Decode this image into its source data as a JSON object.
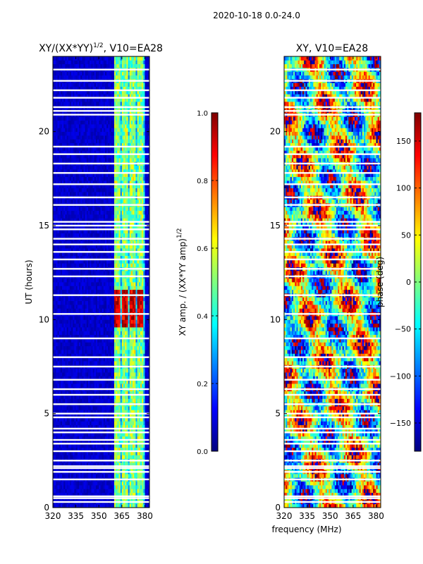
{
  "suptitle": "2020-10-18 0.0-24.0",
  "shared_xlabel": "frequency (MHz)",
  "colors": {
    "jet": [
      "#00007f",
      "#0000ff",
      "#007fff",
      "#00ffff",
      "#7fff7f",
      "#ffff00",
      "#ff7f00",
      "#ff0000",
      "#7f0000"
    ],
    "background": "#ffffff",
    "axis": "#000000"
  },
  "chart_data": [
    {
      "type": "heatmap",
      "panel": "left",
      "title_main": "XY/(XX*YY)",
      "title_sup": "1/2",
      "title_tail": ", V10=EA28",
      "xlabel": "",
      "ylabel": "UT (hours)",
      "xlim": [
        320,
        383
      ],
      "ylim": [
        0,
        24
      ],
      "xticks": [
        320,
        335,
        350,
        365,
        380
      ],
      "yticks": [
        0,
        5,
        10,
        15,
        20
      ],
      "colorbar": {
        "label_main": "XY amp. / (XX*YY amp)",
        "label_sup": "1/2",
        "range": [
          0.0,
          1.0
        ],
        "ticks": [
          "0.0",
          "0.2",
          "0.4",
          "0.6",
          "0.8",
          "1.0"
        ],
        "tick_values": [
          0.0,
          0.2,
          0.4,
          0.6,
          0.8,
          1.0
        ]
      },
      "active_band_mhz": [
        360,
        380
      ],
      "hot_channels_mhz": [
        362,
        367,
        372,
        377
      ],
      "hot_time_hours": [
        9.7,
        11.6
      ],
      "flagged_hours": [
        0.3,
        0.5,
        0.6,
        1.5,
        1.9,
        2.1,
        2.2,
        2.5,
        3.0,
        3.4,
        3.6,
        4.0,
        4.2,
        4.8,
        5.0,
        5.5,
        6.0,
        6.3,
        6.8,
        7.5,
        8.0,
        9.0,
        10.3,
        11.3,
        12.3,
        12.7,
        13.2,
        13.6,
        14.0,
        14.3,
        14.8,
        15.0,
        15.2,
        16.1,
        16.5,
        17.2,
        17.8,
        18.3,
        18.8,
        19.2,
        20.9,
        21.1,
        21.3,
        21.8,
        22.2,
        22.7,
        23.3
      ]
    },
    {
      "type": "heatmap",
      "panel": "right",
      "title": "XY, V10=EA28",
      "xlabel": "",
      "ylabel": "",
      "xlim": [
        320,
        383
      ],
      "ylim": [
        0,
        24
      ],
      "xticks": [
        320,
        335,
        350,
        365,
        380
      ],
      "yticks": [
        0,
        5,
        10,
        15,
        20
      ],
      "colorbar": {
        "label": "phase (deg)",
        "range": [
          -180,
          180
        ],
        "ticks": [
          "−150",
          "−100",
          "−50",
          "0",
          "50",
          "100",
          "150"
        ],
        "tick_values": [
          -150,
          -100,
          -50,
          0,
          50,
          100,
          150
        ]
      },
      "flagged_hours": [
        0.3,
        0.5,
        0.6,
        1.5,
        1.9,
        2.1,
        2.2,
        2.5,
        3.0,
        3.4,
        3.6,
        4.0,
        4.2,
        4.8,
        5.0,
        5.5,
        6.0,
        6.3,
        6.8,
        7.5,
        8.0,
        9.0,
        10.3,
        11.3,
        12.3,
        12.7,
        13.2,
        13.6,
        14.0,
        14.3,
        14.8,
        15.0,
        15.2,
        16.1,
        16.5,
        17.2,
        17.8,
        18.3,
        18.8,
        19.2,
        20.9,
        21.1,
        21.3,
        21.8,
        22.2,
        22.7,
        23.3
      ]
    }
  ]
}
